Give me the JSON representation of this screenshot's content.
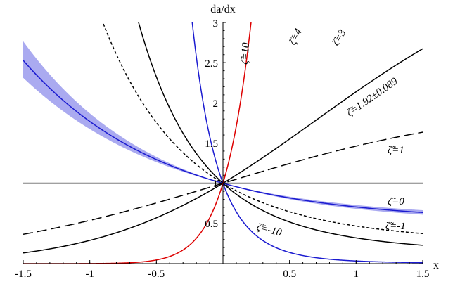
{
  "chart_data": {
    "type": "line",
    "xlabel": "x",
    "ylabel": "da/dx",
    "xlim": [
      -1.5,
      1.5
    ],
    "ylim": [
      0,
      3
    ],
    "x_ticks": [
      "-1.5",
      "-1",
      "-0.5",
      "0.5",
      "1",
      "1.5"
    ],
    "y_ticks": [
      "0.5",
      "1",
      "1.5",
      "2",
      "2.5",
      "3"
    ],
    "grid": false,
    "band": {
      "zeta": 1.92,
      "zeta_err": 0.089,
      "color": "#aaaaf0"
    },
    "series": [
      {
        "name": "ζ̃=10",
        "zeta": 10,
        "color": "#1a1ad0",
        "dash": "none"
      },
      {
        "name": "ζ̃=4",
        "zeta": 4,
        "color": "#000000",
        "dash": "none"
      },
      {
        "name": "ζ̃=3",
        "zeta": 3,
        "color": "#000000",
        "dash": "4,3"
      },
      {
        "name": "ζ̃=1.92±0.089",
        "zeta": 1.92,
        "color": "#1a1ad0",
        "dash": "none"
      },
      {
        "name": "ζ̃=1",
        "zeta": 1,
        "color": "#000000",
        "dash": "none"
      },
      {
        "name": "ζ̃=0",
        "zeta": 0,
        "color": "#000000",
        "dash": "14,6"
      },
      {
        "name": "ζ̃=−1",
        "zeta": -1,
        "color": "#000000",
        "dash": "none"
      },
      {
        "name": "ζ̃=−10",
        "zeta": -10,
        "color": "#dd0000",
        "dash": "none"
      }
    ],
    "labels": {
      "z10": "ζ̃=10",
      "z4": "ζ̃=4",
      "z3": "ζ̃=3",
      "z192": "ζ̃=1.92±0.089",
      "z1": "ζ̃=1",
      "z0": "ζ̃=0",
      "zm1": "ζ̃=-1",
      "zm10": "ζ̃=-10"
    }
  }
}
